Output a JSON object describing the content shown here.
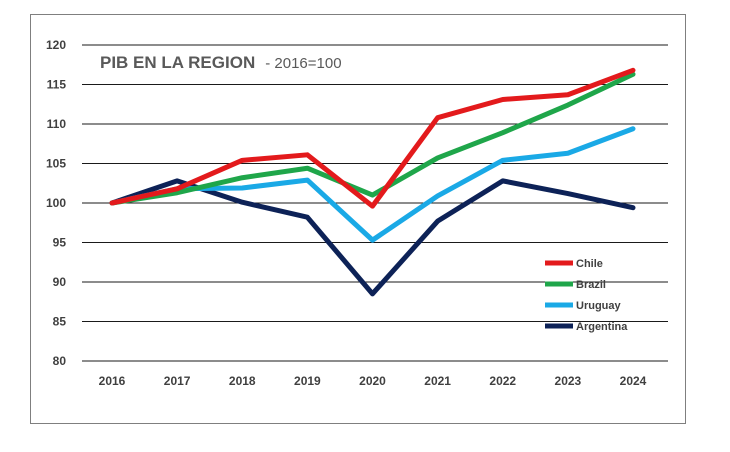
{
  "chart_data": {
    "type": "line",
    "title": "PIB EN LA REGION",
    "subtitle": "- 2016=100",
    "categories": [
      "2016",
      "2017",
      "2018",
      "2019",
      "2020",
      "2021",
      "2022",
      "2023",
      "2024"
    ],
    "ylim": [
      80,
      120
    ],
    "yticks": [
      80,
      85,
      90,
      95,
      100,
      105,
      110,
      115,
      120
    ],
    "grid": true,
    "legend_position": "right",
    "series": [
      {
        "name": "Chile",
        "color": "#e31a1c",
        "values": [
          100,
          101.8,
          105.4,
          106.1,
          99.6,
          110.8,
          113.1,
          113.7,
          116.8
        ]
      },
      {
        "name": "Brazil",
        "color": "#1fa64a",
        "values": [
          100,
          101.3,
          103.2,
          104.4,
          101.0,
          105.7,
          108.9,
          112.4,
          116.3
        ]
      },
      {
        "name": "Uruguay",
        "color": "#1aa9e6",
        "values": [
          100,
          101.8,
          101.9,
          102.9,
          95.3,
          100.9,
          105.4,
          106.3,
          109.4
        ]
      },
      {
        "name": "Argentina",
        "color": "#0d2257",
        "values": [
          100,
          102.8,
          100.1,
          98.2,
          88.5,
          97.7,
          102.8,
          101.2,
          99.4
        ]
      }
    ]
  }
}
